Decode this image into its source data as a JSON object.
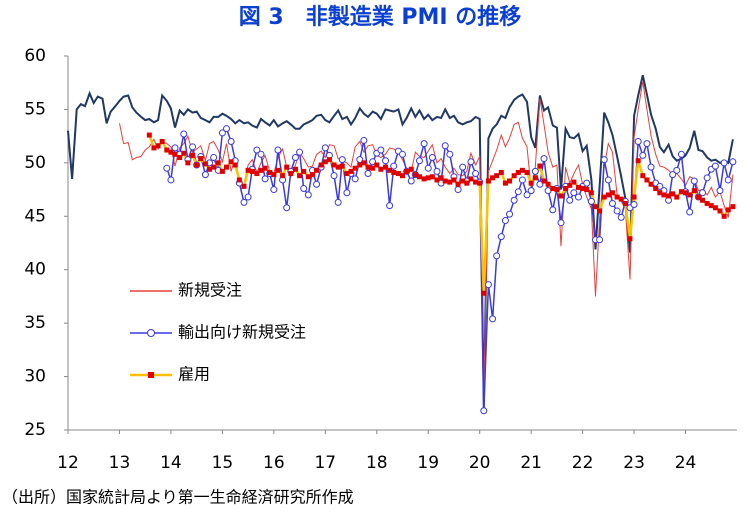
{
  "chart_data": {
    "type": "line",
    "title": "図 3　非製造業 PMI の推移",
    "source": "（出所）国家統計局より第一生命経済研究所作成",
    "x": [
      12.0,
      12.08,
      12.17,
      12.25,
      12.33,
      12.42,
      12.5,
      12.58,
      12.67,
      12.75,
      12.83,
      12.92,
      13.0,
      13.08,
      13.17,
      13.25,
      13.33,
      13.42,
      13.5,
      13.58,
      13.67,
      13.75,
      13.83,
      13.92,
      14.0,
      14.08,
      14.17,
      14.25,
      14.33,
      14.42,
      14.5,
      14.58,
      14.67,
      14.75,
      14.83,
      14.92,
      15.0,
      15.08,
      15.17,
      15.25,
      15.33,
      15.42,
      15.5,
      15.58,
      15.67,
      15.75,
      15.83,
      15.92,
      16.0,
      16.08,
      16.17,
      16.25,
      16.33,
      16.42,
      16.5,
      16.58,
      16.67,
      16.75,
      16.83,
      16.92,
      17.0,
      17.08,
      17.17,
      17.25,
      17.33,
      17.42,
      17.5,
      17.58,
      17.67,
      17.75,
      17.83,
      17.92,
      18.0,
      18.08,
      18.17,
      18.25,
      18.33,
      18.42,
      18.5,
      18.58,
      18.67,
      18.75,
      18.83,
      18.92,
      19.0,
      19.08,
      19.17,
      19.25,
      19.33,
      19.42,
      19.5,
      19.58,
      19.67,
      19.75,
      19.83,
      19.92,
      20.0,
      20.08,
      20.17,
      20.25,
      20.33,
      20.42,
      20.5,
      20.58,
      20.67,
      20.75,
      20.83,
      20.92,
      21.0,
      21.08,
      21.17,
      21.25,
      21.33,
      21.42,
      21.5,
      21.58,
      21.67,
      21.75,
      21.83,
      21.92,
      22.0,
      22.08,
      22.17,
      22.25,
      22.33,
      22.42,
      22.5,
      22.58,
      22.67,
      22.75,
      22.83,
      22.92,
      23.0,
      23.08,
      23.17,
      23.25,
      23.33,
      23.42,
      23.5,
      23.58,
      23.67,
      23.75,
      23.83,
      23.92,
      24.0,
      24.08,
      24.17,
      24.25,
      24.33,
      24.42,
      24.5,
      24.58,
      24.67,
      24.75,
      24.83,
      24.92
    ],
    "series": [
      {
        "color": "#1f3864",
        "marker": "none",
        "values": [
          53.0,
          48.5,
          55.0,
          55.5,
          55.3,
          56.5,
          55.6,
          56.2,
          56.0,
          53.7,
          54.8,
          55.3,
          55.8,
          56.2,
          56.3,
          55.2,
          54.7,
          54.3,
          54.0,
          54.1,
          53.8,
          54.0,
          56.3,
          55.8,
          55.1,
          53.3,
          54.9,
          54.5,
          55.0,
          54.7,
          54.8,
          54.2,
          54.0,
          53.8,
          54.3,
          54.3,
          54.6,
          54.4,
          54.1,
          53.7,
          54.0,
          53.7,
          53.8,
          53.5,
          53.3,
          54.1,
          53.8,
          53.5,
          54.0,
          53.4,
          53.7,
          53.9,
          53.6,
          53.2,
          53.2,
          53.6,
          53.8,
          54.0,
          54.4,
          54.5,
          54.0,
          53.8,
          54.4,
          54.9,
          54.1,
          54.3,
          53.6,
          54.2,
          55.1,
          54.6,
          54.3,
          54.8,
          54.6,
          54.1,
          55.0,
          54.9,
          54.8,
          55.0,
          53.6,
          54.2,
          55.1,
          54.3,
          54.9,
          54.1,
          54.5,
          54.0,
          54.3,
          54.2,
          55.0,
          54.2,
          54.4,
          53.8,
          53.6,
          53.8,
          53.9,
          54.3,
          54.1,
          27.0,
          52.3,
          53.2,
          53.6,
          54.4,
          54.2,
          55.2,
          55.9,
          56.2,
          56.4,
          55.7,
          52.4,
          51.4,
          56.3,
          54.9,
          55.2,
          53.5,
          53.3,
          47.5,
          53.2,
          52.4,
          52.3,
          52.7,
          51.1,
          51.6,
          48.4,
          41.9,
          47.8,
          54.7,
          53.8,
          52.6,
          50.6,
          48.7,
          46.7,
          41.6,
          54.4,
          56.3,
          58.2,
          56.4,
          54.5,
          53.2,
          51.5,
          51.0,
          51.7,
          50.6,
          50.2,
          50.4,
          50.7,
          51.4,
          53.0,
          51.2,
          51.1,
          50.5,
          50.2,
          50.3,
          50.0,
          50.2,
          50.0,
          52.2
        ]
      },
      {
        "name": "新規受注",
        "color": "#e8403a",
        "marker": "none",
        "values": [
          null,
          null,
          null,
          null,
          null,
          null,
          null,
          null,
          null,
          null,
          null,
          null,
          53.7,
          51.8,
          51.9,
          50.3,
          50.5,
          50.6,
          51.2,
          51.5,
          52.2,
          51.3,
          52.0,
          51.8,
          51.5,
          49.7,
          51.4,
          51.8,
          52.5,
          51.0,
          51.3,
          51.6,
          50.2,
          51.8,
          52.0,
          51.2,
          50.1,
          51.8,
          49.2,
          50.5,
          48.2,
          48.0,
          49.8,
          50.3,
          49.1,
          50.0,
          50.7,
          49.2,
          49.0,
          50.5,
          51.3,
          49.6,
          48.7,
          49.8,
          51.0,
          50.4,
          49.6,
          49.7,
          50.8,
          51.1,
          50.5,
          51.7,
          51.6,
          50.4,
          50.2,
          50.0,
          49.6,
          51.5,
          52.0,
          51.0,
          51.6,
          51.7,
          50.7,
          50.5,
          50.8,
          51.4,
          51.3,
          51.0,
          50.3,
          49.5,
          49.2,
          51.0,
          50.6,
          50.5,
          51.1,
          51.7,
          50.0,
          50.4,
          49.6,
          49.0,
          49.5,
          48.9,
          48.8,
          49.2,
          50.9,
          49.8,
          50.6,
          28.5,
          49.2,
          50.2,
          51.2,
          52.6,
          51.5,
          52.3,
          53.6,
          53.8,
          52.3,
          51.5,
          47.5,
          49.6,
          56.0,
          53.6,
          51.0,
          49.6,
          49.8,
          42.2,
          49.6,
          48.1,
          49.0,
          49.8,
          48.0,
          46.8,
          45.7,
          37.5,
          44.8,
          49.6,
          51.8,
          51.0,
          47.0,
          46.4,
          45.8,
          39.1,
          52.4,
          55.0,
          57.6,
          55.0,
          52.5,
          50.8,
          49.7,
          49.6,
          49.3,
          48.9,
          49.0,
          48.5,
          47.9,
          48.7,
          48.5,
          47.4,
          47.5,
          47.0,
          47.7,
          46.8,
          47.3,
          46.0,
          44.9,
          48.9
        ]
      },
      {
        "name": "輸出向け新規受注",
        "color": "#3a3ae0",
        "marker": "circle",
        "values": [
          null,
          null,
          null,
          null,
          null,
          null,
          null,
          null,
          null,
          null,
          null,
          null,
          null,
          null,
          null,
          null,
          null,
          null,
          null,
          null,
          null,
          null,
          null,
          49.5,
          48.4,
          51.4,
          50.8,
          52.7,
          50.3,
          51.5,
          49.8,
          50.6,
          48.9,
          50.0,
          50.5,
          49.3,
          52.8,
          53.2,
          52.0,
          50.2,
          48.1,
          46.3,
          46.8,
          49.4,
          51.2,
          50.8,
          48.5,
          49.0,
          47.5,
          51.2,
          48.4,
          45.8,
          49.2,
          50.5,
          51.0,
          47.6,
          47.0,
          49.3,
          48.0,
          49.6,
          51.4,
          50.7,
          48.8,
          46.3,
          50.3,
          47.2,
          49.0,
          48.5,
          50.3,
          52.1,
          49.0,
          50.1,
          50.9,
          51.2,
          50.2,
          46.0,
          49.7,
          51.1,
          50.8,
          49.2,
          48.3,
          48.9,
          50.2,
          51.8,
          49.5,
          50.5,
          49.2,
          48.1,
          51.6,
          50.8,
          48.7,
          47.5,
          49.6,
          48.3,
          50.1,
          49.0,
          48.2,
          26.8,
          38.6,
          35.4,
          41.3,
          43.1,
          44.6,
          45.2,
          46.5,
          47.3,
          48.4,
          47.0,
          47.4,
          49.2,
          48.0,
          50.4,
          47.4,
          45.6,
          47.6,
          44.4,
          47.8,
          46.5,
          47.2,
          46.8,
          47.8,
          48.1,
          46.4,
          42.8,
          42.8,
          50.3,
          48.4,
          46.2,
          45.5,
          44.9,
          46.4,
          45.8,
          46.1,
          52.0,
          50.7,
          51.8,
          49.6,
          48.1,
          47.8,
          47.4,
          46.5,
          48.9,
          49.3,
          50.8,
          47.3,
          45.4,
          48.3,
          46.8,
          47.2,
          48.6,
          49.4,
          49.7,
          47.4,
          50.0,
          48.4,
          50.1
        ]
      },
      {
        "name": "雇用",
        "color": "#ffc000",
        "marker_color": "#e00000",
        "marker": "square",
        "values": [
          null,
          null,
          null,
          null,
          null,
          null,
          null,
          null,
          null,
          null,
          null,
          null,
          null,
          null,
          null,
          null,
          null,
          null,
          null,
          52.6,
          51.4,
          51.6,
          52.0,
          51.2,
          51.0,
          50.8,
          50.5,
          50.9,
          50.0,
          50.7,
          49.8,
          50.4,
          49.9,
          49.4,
          49.6,
          50.0,
          49.2,
          49.6,
          50.1,
          49.8,
          48.4,
          47.8,
          49.3,
          49.2,
          49.0,
          49.3,
          49.5,
          49.1,
          48.9,
          49.3,
          48.8,
          49.6,
          49.0,
          49.4,
          48.8,
          49.2,
          48.7,
          48.9,
          49.3,
          49.8,
          50.1,
          50.3,
          49.8,
          49.6,
          49.7,
          49.0,
          49.2,
          49.5,
          49.8,
          50.0,
          49.6,
          49.5,
          49.8,
          49.4,
          49.6,
          49.3,
          49.1,
          49.0,
          48.8,
          49.2,
          49.4,
          48.9,
          48.7,
          48.5,
          48.6,
          48.7,
          48.4,
          48.6,
          48.3,
          48.2,
          48.4,
          48.0,
          48.3,
          48.1,
          48.5,
          48.2,
          48.1,
          37.8,
          48.3,
          48.6,
          48.8,
          49.1,
          48.1,
          48.3,
          48.8,
          49.1,
          49.3,
          49.1,
          48.1,
          48.6,
          49.7,
          48.3,
          48.0,
          47.6,
          47.5,
          46.9,
          47.6,
          47.9,
          48.2,
          47.7,
          47.6,
          47.5,
          47.2,
          45.9,
          45.5,
          46.8,
          47.0,
          47.2,
          46.8,
          46.6,
          46.2,
          42.9,
          46.8,
          50.2,
          48.8,
          48.4,
          48.0,
          47.6,
          47.2,
          47.0,
          46.9,
          47.1,
          46.8,
          47.3,
          47.2,
          47.0,
          47.4,
          46.8,
          46.5,
          46.2,
          46.0,
          45.8,
          45.5,
          45.0,
          45.6,
          45.9
        ]
      }
    ],
    "xlim": [
      12,
      25
    ],
    "xticks": [
      12,
      13,
      14,
      15,
      16,
      17,
      18,
      19,
      20,
      21,
      22,
      23,
      24
    ],
    "ylim": [
      25,
      60
    ],
    "yticks": [
      25,
      30,
      35,
      40,
      45,
      50,
      55,
      60
    ],
    "grid": false,
    "legend": "left"
  }
}
